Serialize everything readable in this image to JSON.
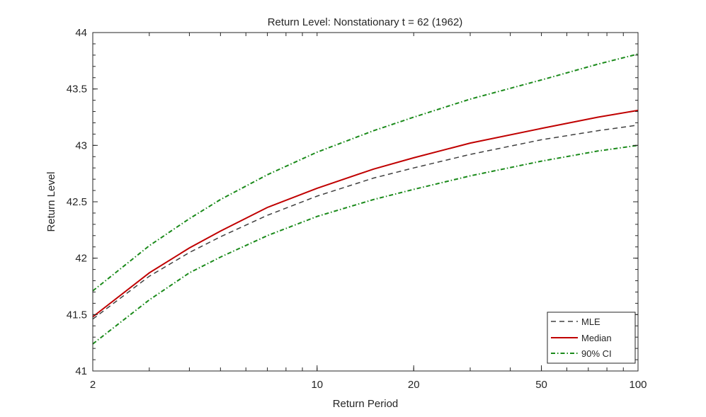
{
  "chart_data": {
    "type": "line",
    "title": "Return Level: Nonstationary t = 62 (1962)",
    "xlabel": "Return Period",
    "ylabel": "Return Level",
    "xscale": "log",
    "xlim": [
      2,
      100
    ],
    "ylim": [
      41,
      44
    ],
    "xticks": [
      2,
      10,
      20,
      50,
      100
    ],
    "yticks": [
      41,
      41.5,
      42,
      42.5,
      43,
      43.5,
      44
    ],
    "ytick_labels": [
      "41",
      "41.5",
      "42",
      "42.5",
      "43",
      "43.5",
      "44"
    ],
    "grid": false,
    "legend_position": "bottom-right",
    "x": [
      2,
      3,
      4,
      5,
      7,
      10,
      15,
      20,
      30,
      50,
      75,
      100
    ],
    "series": [
      {
        "name": "MLE",
        "color": "#404040",
        "style": "dashed",
        "values": [
          41.46,
          41.84,
          42.05,
          42.19,
          42.38,
          42.55,
          42.71,
          42.8,
          42.92,
          43.05,
          43.13,
          43.18
        ]
      },
      {
        "name": "Median",
        "color": "#c00000",
        "style": "solid",
        "values": [
          41.48,
          41.87,
          42.09,
          42.24,
          42.45,
          42.62,
          42.79,
          42.89,
          43.02,
          43.15,
          43.25,
          43.31
        ]
      },
      {
        "name": "90% CI",
        "color": "#1a8a1a",
        "style": "dashdot",
        "values": [
          41.71,
          42.11,
          42.35,
          42.52,
          42.74,
          42.94,
          43.13,
          43.25,
          43.41,
          43.58,
          43.72,
          43.81
        ]
      },
      {
        "name": "",
        "color": "#1a8a1a",
        "style": "dashdot",
        "values": [
          41.24,
          41.63,
          41.87,
          42.01,
          42.2,
          42.37,
          42.52,
          42.61,
          42.73,
          42.86,
          42.95,
          43.0
        ]
      }
    ]
  }
}
